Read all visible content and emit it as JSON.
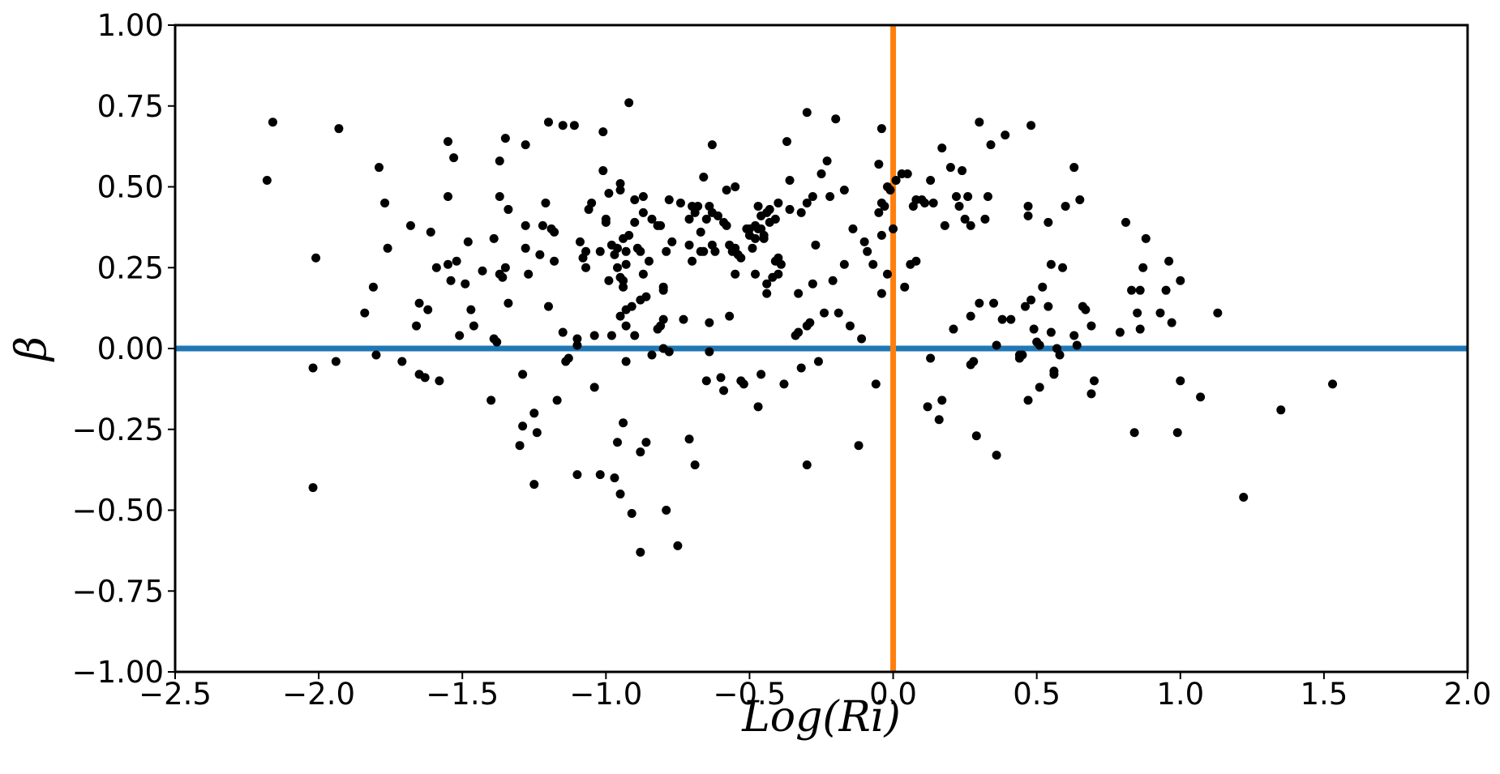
{
  "chart_data": {
    "type": "scatter",
    "title": "",
    "xlabel": "Log(Ri)",
    "ylabel": "β",
    "xlim": [
      -2.5,
      2.0
    ],
    "ylim": [
      -1.0,
      1.0
    ],
    "x_ticks": [
      "−2.5",
      "−2.0",
      "−1.5",
      "−1.0",
      "−0.5",
      "0.0",
      "0.5",
      "1.0",
      "1.5",
      "2.0"
    ],
    "x_tick_values": [
      -2.5,
      -2.0,
      -1.5,
      -1.0,
      -0.5,
      0.0,
      0.5,
      1.0,
      1.5,
      2.0
    ],
    "y_ticks": [
      "−1.00",
      "−0.75",
      "−0.50",
      "−0.25",
      "0.00",
      "0.25",
      "0.50",
      "0.75",
      "1.00"
    ],
    "y_tick_values": [
      -1.0,
      -0.75,
      -0.5,
      -0.25,
      0.0,
      0.25,
      0.5,
      0.75,
      1.0
    ],
    "grid": false,
    "reference_lines": [
      {
        "orientation": "horizontal",
        "value": 0.0,
        "color": "#1f77b4"
      },
      {
        "orientation": "vertical",
        "value": 0.0,
        "color": "#ff7f0e"
      }
    ],
    "point_color": "#000000",
    "points": [
      [
        -2.18,
        0.52
      ],
      [
        -2.16,
        0.7
      ],
      [
        -2.02,
        -0.43
      ],
      [
        -2.02,
        -0.06
      ],
      [
        -2.01,
        0.28
      ],
      [
        -1.94,
        -0.04
      ],
      [
        -1.93,
        0.68
      ],
      [
        -1.84,
        0.11
      ],
      [
        -1.81,
        0.19
      ],
      [
        -1.8,
        -0.02
      ],
      [
        -1.79,
        0.56
      ],
      [
        -1.77,
        0.45
      ],
      [
        -1.76,
        0.31
      ],
      [
        -1.71,
        -0.04
      ],
      [
        -1.68,
        0.38
      ],
      [
        -1.66,
        0.07
      ],
      [
        -1.65,
        0.14
      ],
      [
        -1.65,
        -0.08
      ],
      [
        -1.63,
        -0.09
      ],
      [
        -1.62,
        0.12
      ],
      [
        -1.61,
        0.36
      ],
      [
        -1.59,
        0.25
      ],
      [
        -1.58,
        -0.1
      ],
      [
        -1.55,
        0.64
      ],
      [
        -1.55,
        0.47
      ],
      [
        -1.55,
        0.26
      ],
      [
        -1.54,
        0.21
      ],
      [
        -1.53,
        0.59
      ],
      [
        -1.52,
        0.27
      ],
      [
        -1.51,
        0.04
      ],
      [
        -1.49,
        0.2
      ],
      [
        -1.48,
        0.33
      ],
      [
        -1.47,
        0.12
      ],
      [
        -1.46,
        0.07
      ],
      [
        -1.43,
        0.24
      ],
      [
        -1.4,
        -0.16
      ],
      [
        -1.39,
        0.34
      ],
      [
        -1.39,
        0.03
      ],
      [
        -1.38,
        0.02
      ],
      [
        -1.37,
        0.58
      ],
      [
        -1.37,
        0.47
      ],
      [
        -1.37,
        0.23
      ],
      [
        -1.36,
        0.22
      ],
      [
        -1.35,
        0.65
      ],
      [
        -1.35,
        0.25
      ],
      [
        -1.34,
        0.43
      ],
      [
        -1.34,
        0.14
      ],
      [
        -1.3,
        -0.3
      ],
      [
        -1.29,
        -0.24
      ],
      [
        -1.29,
        -0.08
      ],
      [
        -1.28,
        0.63
      ],
      [
        -1.28,
        0.38
      ],
      [
        -1.28,
        0.31
      ],
      [
        -1.27,
        0.23
      ],
      [
        -1.25,
        -0.42
      ],
      [
        -1.25,
        -0.2
      ],
      [
        -1.24,
        -0.26
      ],
      [
        -1.23,
        0.29
      ],
      [
        -1.22,
        0.38
      ],
      [
        -1.21,
        0.45
      ],
      [
        -1.2,
        0.7
      ],
      [
        -1.2,
        0.13
      ],
      [
        -1.19,
        0.37
      ],
      [
        -1.18,
        0.36
      ],
      [
        -1.18,
        0.27
      ],
      [
        -1.17,
        -0.16
      ],
      [
        -1.15,
        0.69
      ],
      [
        -1.15,
        0.05
      ],
      [
        -1.14,
        -0.04
      ],
      [
        -1.13,
        -0.03
      ],
      [
        -1.11,
        0.69
      ],
      [
        -1.1,
        -0.39
      ],
      [
        -1.1,
        0.03
      ],
      [
        -1.1,
        0.01
      ],
      [
        -1.09,
        0.33
      ],
      [
        -1.08,
        0.28
      ],
      [
        -1.07,
        0.3
      ],
      [
        -1.07,
        0.25
      ],
      [
        -1.06,
        0.43
      ],
      [
        -1.05,
        0.45
      ],
      [
        -1.04,
        -0.12
      ],
      [
        -1.04,
        0.04
      ],
      [
        -1.02,
        0.3
      ],
      [
        -1.02,
        -0.39
      ],
      [
        -1.01,
        0.67
      ],
      [
        -1.01,
        0.55
      ],
      [
        -1.0,
        0.4
      ],
      [
        -1.0,
        0.39
      ],
      [
        -0.99,
        0.21
      ],
      [
        -0.99,
        0.48
      ],
      [
        -0.98,
        0.32
      ],
      [
        -0.98,
        0.04
      ],
      [
        -0.97,
        -0.4
      ],
      [
        -0.97,
        0.29
      ],
      [
        -0.96,
        0.31
      ],
      [
        -0.96,
        0.25
      ],
      [
        -0.96,
        -0.29
      ],
      [
        -0.95,
        0.51
      ],
      [
        -0.95,
        0.49
      ],
      [
        -0.95,
        0.1
      ],
      [
        -0.95,
        0.22
      ],
      [
        -0.95,
        -0.45
      ],
      [
        -0.94,
        0.34
      ],
      [
        -0.94,
        0.19
      ],
      [
        -0.94,
        -0.23
      ],
      [
        -0.94,
        0.21
      ],
      [
        -0.93,
        0.26
      ],
      [
        -0.93,
        0.3
      ],
      [
        -0.93,
        0.07
      ],
      [
        -0.93,
        0.12
      ],
      [
        -0.93,
        -0.04
      ],
      [
        -0.92,
        0.76
      ],
      [
        -0.92,
        0.35
      ],
      [
        -0.91,
        0.13
      ],
      [
        -0.91,
        -0.51
      ],
      [
        -0.9,
        0.39
      ],
      [
        -0.9,
        0.46
      ],
      [
        -0.9,
        0.04
      ],
      [
        -0.89,
        0.31
      ],
      [
        -0.88,
        -0.63
      ],
      [
        -0.88,
        -0.32
      ],
      [
        -0.88,
        0.3
      ],
      [
        -0.88,
        0.15
      ],
      [
        -0.87,
        0.42
      ],
      [
        -0.87,
        0.23
      ],
      [
        -0.87,
        0.47
      ],
      [
        -0.86,
        0.16
      ],
      [
        -0.86,
        -0.29
      ],
      [
        -0.85,
        0.27
      ],
      [
        -0.84,
        0.4
      ],
      [
        -0.84,
        -0.02
      ],
      [
        -0.82,
        0.38
      ],
      [
        -0.82,
        0.06
      ],
      [
        -0.81,
        0.07
      ],
      [
        -0.81,
        0.38
      ],
      [
        -0.8,
        0.19
      ],
      [
        -0.8,
        0.09
      ],
      [
        -0.8,
        0.18
      ],
      [
        -0.8,
        0.0
      ],
      [
        -0.79,
        -0.5
      ],
      [
        -0.79,
        0.3
      ],
      [
        -0.78,
        0.46
      ],
      [
        -0.78,
        -0.01
      ],
      [
        -0.77,
        0.33
      ],
      [
        -0.75,
        -0.61
      ],
      [
        -0.74,
        0.45
      ],
      [
        -0.73,
        0.09
      ],
      [
        -0.71,
        -0.28
      ],
      [
        -0.71,
        0.4
      ],
      [
        -0.71,
        0.32
      ],
      [
        -0.7,
        0.44
      ],
      [
        -0.7,
        0.27
      ],
      [
        -0.69,
        -0.36
      ],
      [
        -0.69,
        0.42
      ],
      [
        -0.68,
        0.44
      ],
      [
        -0.67,
        0.36
      ],
      [
        -0.67,
        0.3
      ],
      [
        -0.66,
        0.53
      ],
      [
        -0.66,
        0.3
      ],
      [
        -0.65,
        -0.1
      ],
      [
        -0.65,
        0.4
      ],
      [
        -0.64,
        0.44
      ],
      [
        -0.64,
        -0.01
      ],
      [
        -0.64,
        0.08
      ],
      [
        -0.63,
        0.63
      ],
      [
        -0.63,
        0.42
      ],
      [
        -0.63,
        0.32
      ],
      [
        -0.62,
        0.3
      ],
      [
        -0.61,
        0.41
      ],
      [
        -0.6,
        -0.09
      ],
      [
        -0.59,
        0.39
      ],
      [
        -0.59,
        -0.13
      ],
      [
        -0.58,
        0.49
      ],
      [
        -0.58,
        0.38
      ],
      [
        -0.57,
        0.32
      ],
      [
        -0.57,
        0.1
      ],
      [
        -0.56,
        0.3
      ],
      [
        -0.55,
        0.5
      ],
      [
        -0.55,
        0.31
      ],
      [
        -0.55,
        0.23
      ],
      [
        -0.54,
        0.29
      ],
      [
        -0.53,
        -0.1
      ],
      [
        -0.53,
        0.28
      ],
      [
        -0.52,
        -0.11
      ],
      [
        -0.51,
        0.37
      ],
      [
        -0.5,
        0.37
      ],
      [
        -0.5,
        0.35
      ],
      [
        -0.49,
        0.31
      ],
      [
        -0.48,
        0.38
      ],
      [
        -0.48,
        0.34
      ],
      [
        -0.48,
        0.23
      ],
      [
        -0.47,
        -0.18
      ],
      [
        -0.47,
        0.44
      ],
      [
        -0.47,
        0.37
      ],
      [
        -0.46,
        0.37
      ],
      [
        -0.46,
        0.41
      ],
      [
        -0.46,
        -0.08
      ],
      [
        -0.45,
        0.35
      ],
      [
        -0.45,
        0.34
      ],
      [
        -0.44,
        0.42
      ],
      [
        -0.44,
        0.2
      ],
      [
        -0.44,
        0.17
      ],
      [
        -0.43,
        0.43
      ],
      [
        -0.43,
        0.39
      ],
      [
        -0.42,
        0.22
      ],
      [
        -0.41,
        0.4
      ],
      [
        -0.41,
        0.27
      ],
      [
        -0.4,
        0.45
      ],
      [
        -0.4,
        0.23
      ],
      [
        -0.4,
        0.28
      ],
      [
        -0.39,
        0.26
      ],
      [
        -0.38,
        -0.11
      ],
      [
        -0.37,
        0.64
      ],
      [
        -0.36,
        0.52
      ],
      [
        -0.36,
        0.43
      ],
      [
        -0.34,
        0.04
      ],
      [
        -0.33,
        0.05
      ],
      [
        -0.33,
        0.17
      ],
      [
        -0.32,
        0.42
      ],
      [
        -0.32,
        -0.06
      ],
      [
        -0.3,
        0.45
      ],
      [
        -0.3,
        0.73
      ],
      [
        -0.3,
        -0.36
      ],
      [
        -0.3,
        0.07
      ],
      [
        -0.29,
        0.08
      ],
      [
        -0.28,
        0.47
      ],
      [
        -0.28,
        0.2
      ],
      [
        -0.27,
        0.32
      ],
      [
        -0.26,
        -0.04
      ],
      [
        -0.25,
        0.54
      ],
      [
        -0.24,
        0.11
      ],
      [
        -0.23,
        0.58
      ],
      [
        -0.22,
        0.47
      ],
      [
        -0.21,
        0.21
      ],
      [
        -0.2,
        0.71
      ],
      [
        -0.19,
        0.11
      ],
      [
        -0.17,
        0.49
      ],
      [
        -0.17,
        0.26
      ],
      [
        -0.15,
        0.07
      ],
      [
        -0.14,
        0.37
      ],
      [
        -0.12,
        -0.3
      ],
      [
        -0.11,
        0.03
      ],
      [
        -0.1,
        0.33
      ],
      [
        -0.09,
        0.3
      ],
      [
        -0.07,
        0.26
      ],
      [
        -0.06,
        -0.11
      ],
      [
        -0.05,
        0.57
      ],
      [
        -0.05,
        0.42
      ],
      [
        -0.04,
        0.35
      ],
      [
        -0.04,
        0.17
      ],
      [
        -0.04,
        0.45
      ],
      [
        -0.04,
        0.68
      ],
      [
        -0.03,
        0.44
      ],
      [
        -0.02,
        0.5
      ],
      [
        -0.02,
        0.23
      ],
      [
        -0.01,
        0.49
      ],
      [
        0.0,
        0.37
      ],
      [
        0.01,
        0.52
      ],
      [
        0.03,
        0.54
      ],
      [
        0.04,
        0.19
      ],
      [
        0.05,
        0.54
      ],
      [
        0.06,
        0.26
      ],
      [
        0.07,
        0.44
      ],
      [
        0.08,
        0.27
      ],
      [
        0.08,
        0.46
      ],
      [
        0.1,
        0.46
      ],
      [
        0.11,
        0.45
      ],
      [
        0.12,
        -0.18
      ],
      [
        0.13,
        -0.03
      ],
      [
        0.13,
        0.52
      ],
      [
        0.14,
        0.45
      ],
      [
        0.16,
        -0.22
      ],
      [
        0.17,
        0.62
      ],
      [
        0.17,
        -0.16
      ],
      [
        0.18,
        0.38
      ],
      [
        0.2,
        0.56
      ],
      [
        0.21,
        0.06
      ],
      [
        0.22,
        0.47
      ],
      [
        0.23,
        0.44
      ],
      [
        0.24,
        0.55
      ],
      [
        0.25,
        0.4
      ],
      [
        0.26,
        0.47
      ],
      [
        0.27,
        -0.05
      ],
      [
        0.27,
        0.38
      ],
      [
        0.27,
        0.1
      ],
      [
        0.28,
        -0.04
      ],
      [
        0.29,
        -0.27
      ],
      [
        0.3,
        0.7
      ],
      [
        0.3,
        0.14
      ],
      [
        0.32,
        0.4
      ],
      [
        0.33,
        0.47
      ],
      [
        0.34,
        0.63
      ],
      [
        0.35,
        0.14
      ],
      [
        0.36,
        0.01
      ],
      [
        0.36,
        -0.33
      ],
      [
        0.38,
        0.09
      ],
      [
        0.39,
        0.66
      ],
      [
        0.41,
        0.09
      ],
      [
        0.44,
        -0.02
      ],
      [
        0.44,
        -0.03
      ],
      [
        0.45,
        -0.02
      ],
      [
        0.46,
        0.13
      ],
      [
        0.47,
        -0.16
      ],
      [
        0.47,
        0.41
      ],
      [
        0.47,
        0.44
      ],
      [
        0.48,
        0.69
      ],
      [
        0.48,
        0.15
      ],
      [
        0.49,
        0.06
      ],
      [
        0.5,
        0.02
      ],
      [
        0.51,
        0.01
      ],
      [
        0.51,
        -0.12
      ],
      [
        0.52,
        0.19
      ],
      [
        0.54,
        0.13
      ],
      [
        0.54,
        0.39
      ],
      [
        0.55,
        0.05
      ],
      [
        0.55,
        0.26
      ],
      [
        0.56,
        -0.08
      ],
      [
        0.56,
        -0.07
      ],
      [
        0.57,
        0.0
      ],
      [
        0.58,
        -0.02
      ],
      [
        0.59,
        0.25
      ],
      [
        0.6,
        0.44
      ],
      [
        0.63,
        0.56
      ],
      [
        0.63,
        0.04
      ],
      [
        0.64,
        0.01
      ],
      [
        0.65,
        0.46
      ],
      [
        0.66,
        0.13
      ],
      [
        0.67,
        0.12
      ],
      [
        0.69,
        0.07
      ],
      [
        0.69,
        -0.14
      ],
      [
        0.7,
        -0.1
      ],
      [
        0.79,
        0.05
      ],
      [
        0.81,
        0.39
      ],
      [
        0.83,
        0.18
      ],
      [
        0.84,
        -0.26
      ],
      [
        0.85,
        0.11
      ],
      [
        0.86,
        0.06
      ],
      [
        0.86,
        0.18
      ],
      [
        0.87,
        0.25
      ],
      [
        0.88,
        0.34
      ],
      [
        0.93,
        0.11
      ],
      [
        0.95,
        0.18
      ],
      [
        0.96,
        0.27
      ],
      [
        0.97,
        0.08
      ],
      [
        0.99,
        -0.26
      ],
      [
        1.0,
        -0.1
      ],
      [
        1.0,
        0.21
      ],
      [
        1.07,
        -0.15
      ],
      [
        1.13,
        0.11
      ],
      [
        1.22,
        -0.46
      ],
      [
        1.35,
        -0.19
      ],
      [
        1.53,
        -0.11
      ]
    ]
  }
}
